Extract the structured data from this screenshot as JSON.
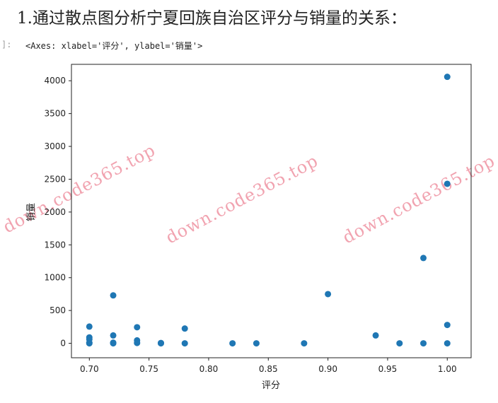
{
  "heading": "1.通过散点图分析宁夏回族自治区评分与销量的关系：",
  "cell": {
    "prompt": "]:",
    "output": "<Axes: xlabel='评分', ylabel='销量'>"
  },
  "watermark": "down.code365.top",
  "chart_data": {
    "type": "scatter",
    "title": "",
    "xlabel": "评分",
    "ylabel": "销量",
    "xlim": [
      0.685,
      1.02
    ],
    "ylim": [
      -220,
      4250
    ],
    "xticks": [
      0.7,
      0.75,
      0.8,
      0.85,
      0.9,
      0.95,
      1.0
    ],
    "xtick_labels": [
      "0.70",
      "0.75",
      "0.80",
      "0.85",
      "0.90",
      "0.95",
      "1.00"
    ],
    "yticks": [
      0,
      500,
      1000,
      1500,
      2000,
      2500,
      3000,
      3500,
      4000
    ],
    "ytick_labels": [
      "0",
      "500",
      "1000",
      "1500",
      "2000",
      "2500",
      "3000",
      "3500",
      "4000"
    ],
    "point_color": "#1f77b4",
    "points": [
      {
        "x": 0.7,
        "y": 255
      },
      {
        "x": 0.7,
        "y": 90
      },
      {
        "x": 0.7,
        "y": 60
      },
      {
        "x": 0.7,
        "y": 10
      },
      {
        "x": 0.7,
        "y": 0
      },
      {
        "x": 0.72,
        "y": 730
      },
      {
        "x": 0.72,
        "y": 120
      },
      {
        "x": 0.72,
        "y": 10
      },
      {
        "x": 0.72,
        "y": 0
      },
      {
        "x": 0.74,
        "y": 245
      },
      {
        "x": 0.74,
        "y": 45
      },
      {
        "x": 0.74,
        "y": 5
      },
      {
        "x": 0.76,
        "y": 5
      },
      {
        "x": 0.76,
        "y": 0
      },
      {
        "x": 0.78,
        "y": 225
      },
      {
        "x": 0.78,
        "y": 0
      },
      {
        "x": 0.82,
        "y": 0
      },
      {
        "x": 0.84,
        "y": 0
      },
      {
        "x": 0.88,
        "y": 0
      },
      {
        "x": 0.9,
        "y": 750
      },
      {
        "x": 0.94,
        "y": 120
      },
      {
        "x": 0.96,
        "y": 0
      },
      {
        "x": 0.98,
        "y": 1300
      },
      {
        "x": 0.98,
        "y": 0
      },
      {
        "x": 1.0,
        "y": 4060
      },
      {
        "x": 1.0,
        "y": 2430
      },
      {
        "x": 1.0,
        "y": 280
      },
      {
        "x": 1.0,
        "y": 0
      }
    ]
  }
}
